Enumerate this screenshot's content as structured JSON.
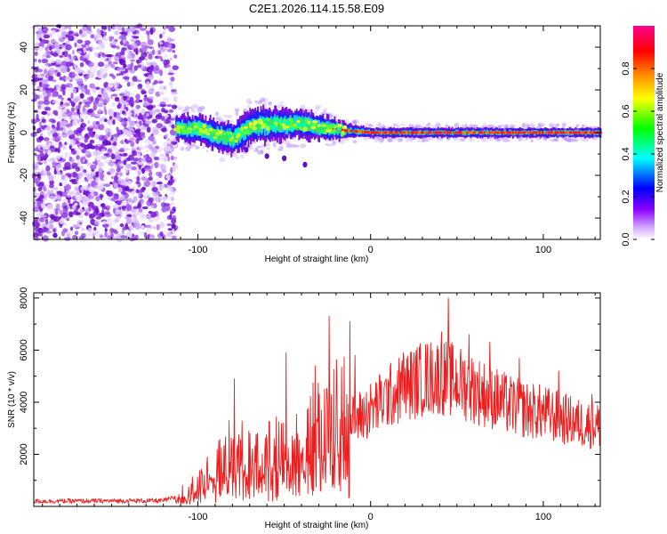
{
  "title": "C2E1.2026.114.15.58.E09",
  "chart_data": [
    {
      "type": "heatmap",
      "name": "spectrogram",
      "xlabel": "Height of straight line (km)",
      "ylabel": "Frequency (Hz)",
      "xlim": [
        -195,
        133
      ],
      "ylim": [
        -50,
        50
      ],
      "xticks": [
        -100,
        0,
        100
      ],
      "yticks": [
        -40,
        -20,
        0,
        20,
        40
      ],
      "noise_region_x": [
        -195,
        -113
      ],
      "signal_band": {
        "x_start": -113,
        "x_end": 133,
        "center_freq_knots": [
          [
            -113,
            2
          ],
          [
            -100,
            2
          ],
          [
            -90,
            -1
          ],
          [
            -80,
            -3
          ],
          [
            -70,
            3
          ],
          [
            -55,
            4
          ],
          [
            -40,
            4
          ],
          [
            -25,
            2
          ],
          [
            -15,
            1
          ],
          [
            0,
            0
          ],
          [
            133,
            0
          ]
        ],
        "half_width_knots": [
          [
            -113,
            5
          ],
          [
            -90,
            6
          ],
          [
            -60,
            7
          ],
          [
            -30,
            5
          ],
          [
            -15,
            3
          ],
          [
            0,
            2
          ],
          [
            133,
            2
          ]
        ]
      },
      "colorbar": {
        "label": "Normalized spectral amplitude",
        "ticks": [
          0.0,
          0.2,
          0.4,
          0.6,
          0.8
        ],
        "tick_labels": [
          "0.0",
          "0.2",
          "0.4",
          "0.6",
          "0.8"
        ],
        "range": [
          0,
          1
        ],
        "colors": [
          "#ffffff",
          "#8b00ff",
          "#0000ff",
          "#00ffff",
          "#00ff00",
          "#ffff00",
          "#ff8000",
          "#ff0000",
          "#ff0090"
        ]
      }
    },
    {
      "type": "line",
      "name": "snr",
      "xlabel": "Height of straight line (km)",
      "ylabel": "SNR (10 * v/v)",
      "xlim": [
        -195,
        133
      ],
      "ylim": [
        0,
        8200
      ],
      "xticks": [
        -100,
        0,
        100
      ],
      "yticks": [
        2000,
        4000,
        6000,
        8000
      ],
      "series_color": "#ee1c1c",
      "envelope": {
        "x": [
          -195,
          -120,
          -110,
          -100,
          -90,
          -80,
          -70,
          -60,
          -50,
          -40,
          -30,
          -20,
          -10,
          0,
          10,
          20,
          30,
          40,
          50,
          60,
          70,
          80,
          90,
          100,
          110,
          120,
          133
        ],
        "y": [
          200,
          220,
          400,
          700,
          1300,
          1900,
          1600,
          1700,
          2000,
          2500,
          2700,
          3000,
          3300,
          3700,
          4200,
          4600,
          4900,
          5000,
          4800,
          4500,
          4200,
          3900,
          3700,
          3600,
          3400,
          3200,
          3100
        ]
      },
      "peaks": [
        [
          -79,
          4900
        ],
        [
          -49,
          5900
        ],
        [
          -32,
          5400
        ],
        [
          -24,
          7300
        ],
        [
          -12,
          7100
        ],
        [
          -9,
          5800
        ],
        [
          19,
          5900
        ],
        [
          41,
          6700
        ],
        [
          45,
          8000
        ],
        [
          57,
          6600
        ],
        [
          69,
          6300
        ],
        [
          86,
          5700
        ],
        [
          109,
          5200
        ],
        [
          128,
          4300
        ]
      ]
    }
  ]
}
